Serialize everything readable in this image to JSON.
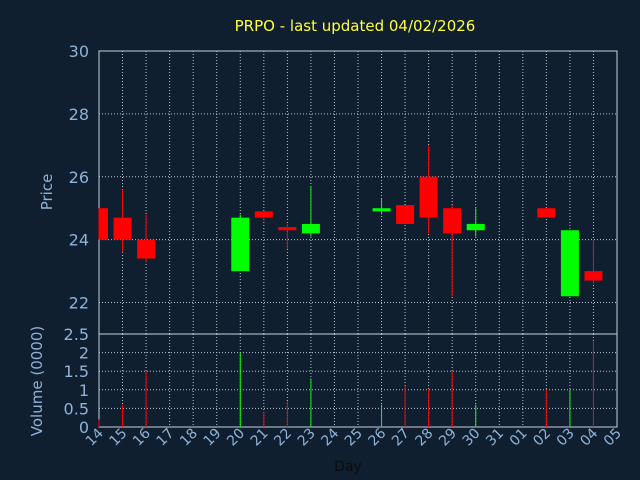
{
  "chart_data": {
    "type": "candlestick",
    "title": "PRPO - last updated 04/02/2026",
    "xlabel": "Day",
    "price_ylabel": "Price",
    "volume_ylabel": "Volume (0000)",
    "price_ylim": [
      21,
      30
    ],
    "price_yticks": [
      "22",
      "24",
      "26",
      "28",
      "30"
    ],
    "volume_ylim": [
      0,
      2.5
    ],
    "volume_yticks": [
      "0",
      "0.5",
      "1",
      "1.5",
      "2",
      "2.5"
    ],
    "grid": true,
    "x_ticks": [
      "14",
      "15",
      "16",
      "17",
      "18",
      "19",
      "20",
      "21",
      "22",
      "23",
      "24",
      "25",
      "26",
      "27",
      "28",
      "29",
      "30",
      "31",
      "01",
      "02",
      "03",
      "04",
      "05"
    ],
    "up_color": "#00ff00",
    "down_color": "#ff0000",
    "candles": [
      {
        "day": "14",
        "open": 25.0,
        "high": 25.0,
        "low": 24.0,
        "close": 24.0,
        "volume": 0.2
      },
      {
        "day": "15",
        "open": 24.7,
        "high": 25.6,
        "low": 23.6,
        "close": 24.0,
        "volume": 0.6
      },
      {
        "day": "16",
        "open": 24.0,
        "high": 24.8,
        "low": 23.3,
        "close": 23.4,
        "volume": 1.5
      },
      {
        "day": "20",
        "open": 23.0,
        "high": 24.8,
        "low": 23.0,
        "close": 24.7,
        "volume": 2.0
      },
      {
        "day": "21",
        "open": 24.9,
        "high": 24.9,
        "low": 24.6,
        "close": 24.7,
        "volume": 0.4
      },
      {
        "day": "22",
        "open": 24.4,
        "high": 24.5,
        "low": 23.7,
        "close": 24.3,
        "volume": 0.7
      },
      {
        "day": "23",
        "open": 24.2,
        "high": 25.7,
        "low": 24.1,
        "close": 24.5,
        "volume": 1.3
      },
      {
        "day": "26",
        "open": 24.9,
        "high": 25.3,
        "low": 24.8,
        "close": 25.0,
        "volume": 0.6
      },
      {
        "day": "27",
        "open": 25.1,
        "high": 25.1,
        "low": 24.5,
        "close": 24.5,
        "volume": 1.1
      },
      {
        "day": "28",
        "open": 26.0,
        "high": 27.0,
        "low": 24.2,
        "close": 24.7,
        "volume": 1.0
      },
      {
        "day": "29",
        "open": 25.0,
        "high": 25.1,
        "low": 22.2,
        "close": 24.2,
        "volume": 1.5
      },
      {
        "day": "30",
        "open": 24.3,
        "high": 25.0,
        "low": 24.1,
        "close": 24.5,
        "volume": 0.6
      },
      {
        "day": "02",
        "open": 25.0,
        "high": 25.0,
        "low": 24.7,
        "close": 24.7,
        "volume": 1.0
      },
      {
        "day": "03",
        "open": 22.2,
        "high": 24.3,
        "low": 22.2,
        "close": 24.3,
        "volume": 1.0
      },
      {
        "day": "04",
        "open": 23.0,
        "high": 24.0,
        "low": 22.6,
        "close": 22.7,
        "volume": 2.3
      }
    ]
  }
}
